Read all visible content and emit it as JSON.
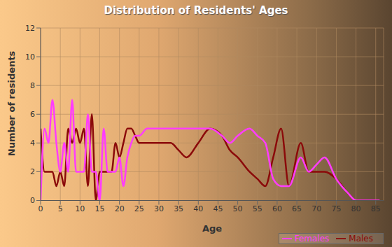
{
  "chart_data": {
    "type": "line",
    "title": "Distribution of Residents' Ages",
    "x_label": "Age",
    "y_label": "Number of residents",
    "x": [
      0,
      1,
      2,
      3,
      4,
      5,
      6,
      7,
      8,
      9,
      10,
      11,
      12,
      13,
      14,
      15,
      16,
      17,
      18,
      19,
      20,
      21,
      22,
      23,
      24,
      25,
      27,
      30,
      33,
      35,
      37,
      40,
      43,
      46,
      48,
      50,
      53,
      55,
      57,
      59,
      61,
      63,
      66,
      68,
      70,
      72,
      75,
      78,
      80,
      82,
      84,
      86
    ],
    "series": [
      {
        "name": "Males",
        "color": "#8b0a0a",
        "values": [
          5,
          2,
          2,
          2,
          1,
          2,
          1,
          5,
          4,
          5,
          4,
          5,
          1,
          6,
          0,
          2,
          2,
          2,
          2,
          4,
          3,
          4,
          5,
          5,
          4.5,
          4,
          4,
          4,
          4,
          3.5,
          3,
          4,
          5,
          4.5,
          3.5,
          3,
          2,
          1.5,
          1,
          3,
          5,
          1,
          4,
          2,
          2,
          2,
          1.5,
          0.5,
          0,
          0,
          0,
          0
        ]
      },
      {
        "name": "Females",
        "color": "#ff3cff",
        "values": [
          0,
          5,
          4,
          7,
          4,
          2,
          4,
          2,
          7,
          2,
          2,
          2,
          6,
          2,
          2,
          0,
          5,
          2,
          2,
          2,
          3,
          1,
          3,
          4,
          4.5,
          4.5,
          5,
          5,
          5,
          5,
          5,
          5,
          5,
          4.5,
          4,
          4.5,
          5,
          4.5,
          4,
          1.5,
          1,
          1,
          3,
          2,
          2.5,
          3,
          1.5,
          0.5,
          0,
          0,
          0,
          0
        ]
      }
    ],
    "xlim": [
      0,
      87
    ],
    "xticks": [
      0,
      5,
      10,
      15,
      20,
      25,
      30,
      35,
      40,
      45,
      50,
      55,
      60,
      65,
      70,
      75,
      80,
      85
    ],
    "ylim": [
      0,
      12
    ],
    "yticks": [
      0,
      2,
      4,
      6,
      8,
      10,
      12
    ],
    "grid": true,
    "legend": "lower right"
  }
}
